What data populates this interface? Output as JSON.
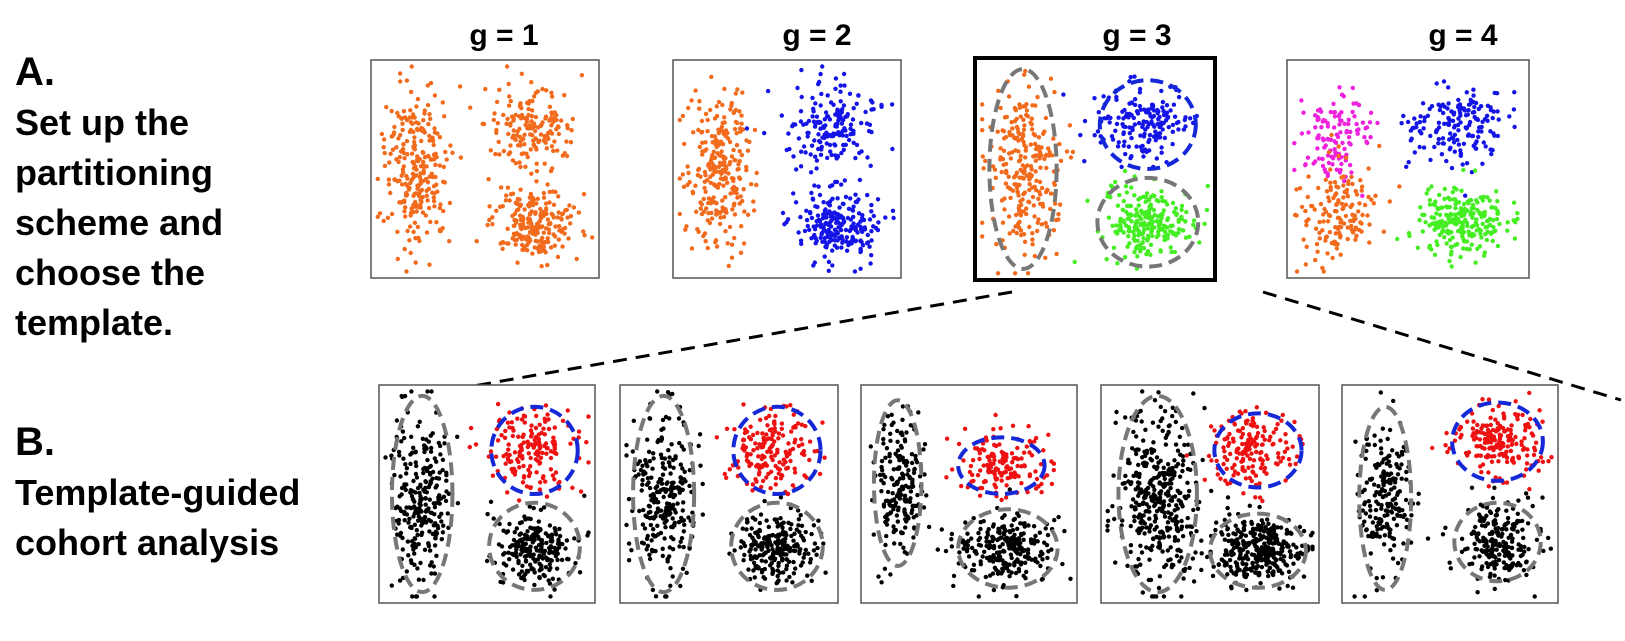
{
  "section_a": {
    "label": "A.",
    "lines": [
      "Set up the",
      "partitioning",
      "scheme and",
      "choose the",
      "template."
    ]
  },
  "panels": [
    {
      "title": "g = 1"
    },
    {
      "title": "g = 2"
    },
    {
      "title": "g = 3"
    },
    {
      "title": "g = 4"
    }
  ],
  "section_b": {
    "label": "B.",
    "lines": [
      "Template-guided",
      "cohort analysis"
    ]
  }
}
